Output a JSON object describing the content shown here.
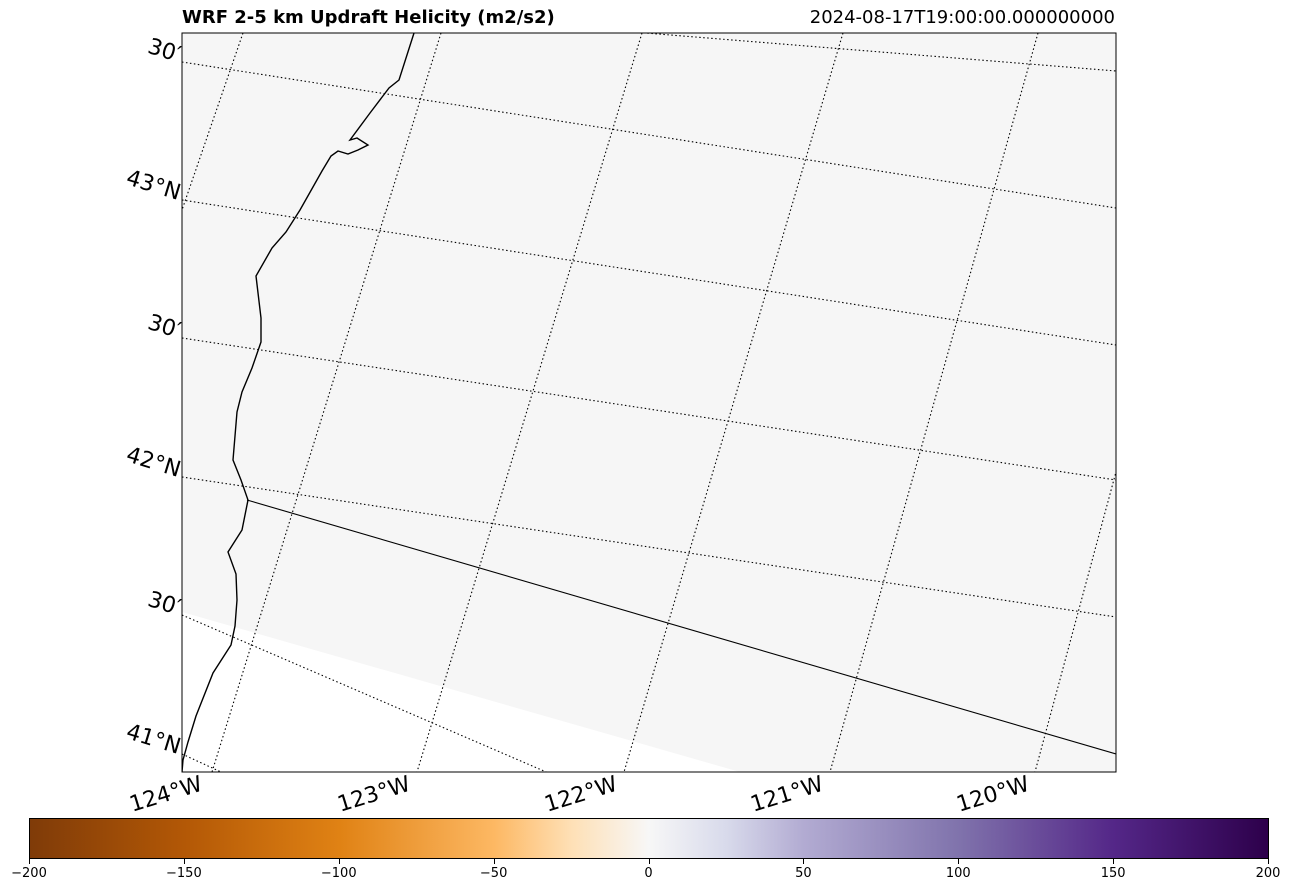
{
  "title": "WRF 2-5 km Updraft Helicity (m2/s2)",
  "timestamp": "2024-08-17T19:00:00.000000000",
  "map": {
    "projection": "lambert-conformal",
    "background_fill": "#f6f6f6",
    "lat_labels": [
      {
        "text": "30′",
        "lat": 43.5
      },
      {
        "text": "43°N",
        "lat": 43.0
      },
      {
        "text": "30′",
        "lat": 42.5
      },
      {
        "text": "42°N",
        "lat": 42.0
      },
      {
        "text": "30′",
        "lat": 41.5
      },
      {
        "text": "41°N",
        "lat": 41.0
      }
    ],
    "lon_labels": [
      {
        "text": "124°W",
        "lon": -124
      },
      {
        "text": "123°W",
        "lon": -123
      },
      {
        "text": "122°W",
        "lon": -122
      },
      {
        "text": "121°W",
        "lon": -121
      },
      {
        "text": "120°W",
        "lon": -120
      }
    ],
    "features": [
      "coastline",
      "state-border-oregon-california"
    ]
  },
  "colorbar": {
    "min": -200,
    "max": 200,
    "colormap": "PuOr",
    "ticks": [
      {
        "label": "−200",
        "value": -200
      },
      {
        "label": "−150",
        "value": -150
      },
      {
        "label": "−100",
        "value": -100
      },
      {
        "label": "−50",
        "value": -50
      },
      {
        "label": "0",
        "value": 0
      },
      {
        "label": "50",
        "value": 50
      },
      {
        "label": "100",
        "value": 100
      },
      {
        "label": "150",
        "value": 150
      },
      {
        "label": "200",
        "value": 200
      }
    ]
  }
}
